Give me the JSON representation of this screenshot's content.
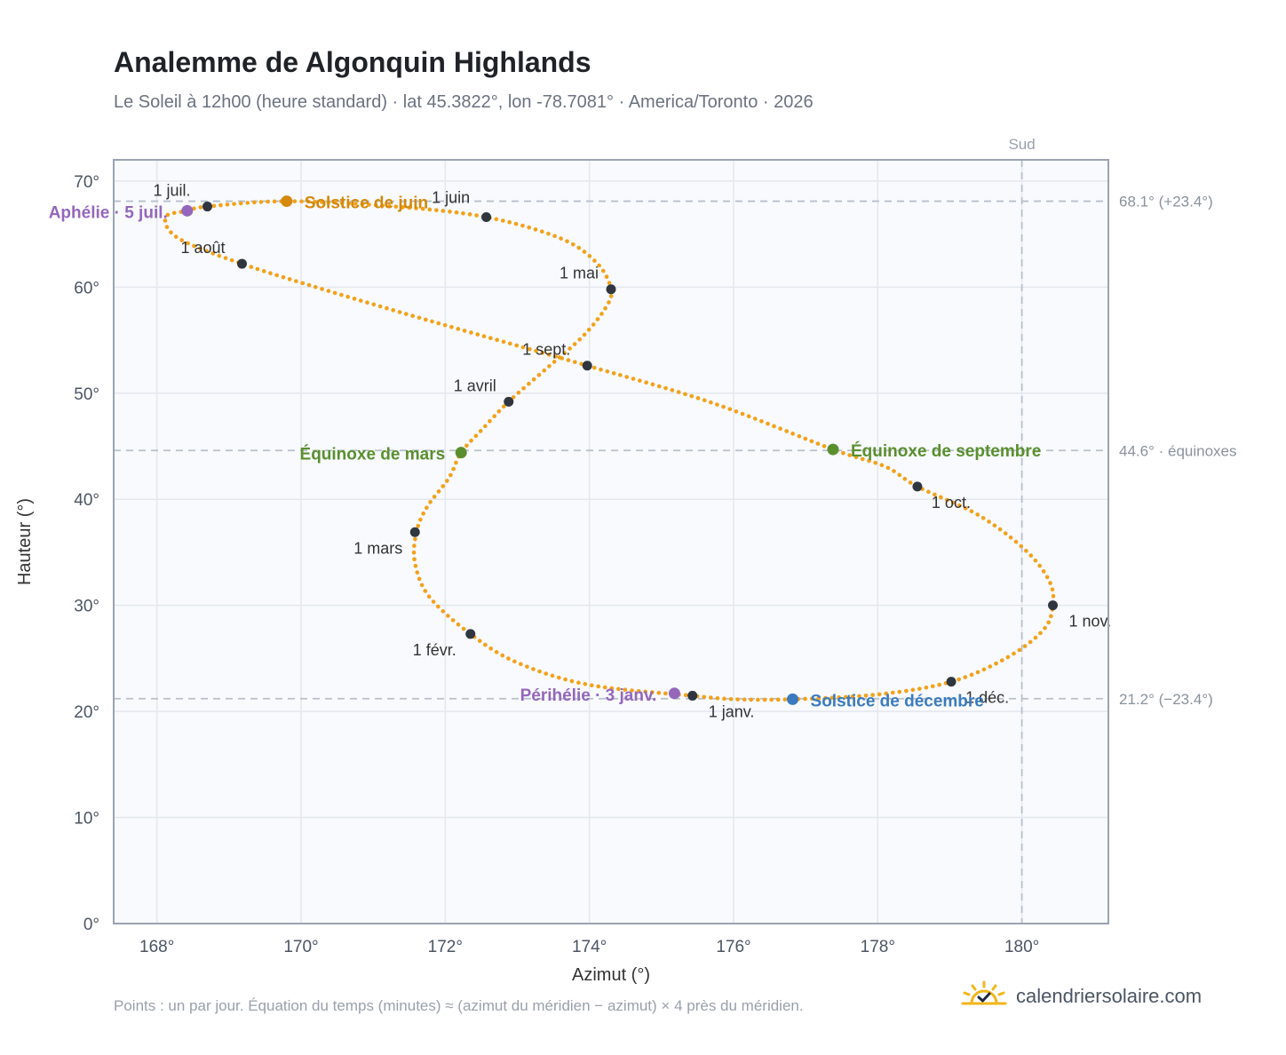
{
  "header": {
    "title": "Analemme de Algonquin Highlands",
    "subtitle": "Le Soleil à 12h00 (heure standard) · lat 45.3822°, lon -78.7081° · America/Toronto · 2026"
  },
  "footer": {
    "note": "Points : un par jour. Équation du temps (minutes) ≈ (azimut du méridien − azimut) × 4 près du méridien.",
    "brand": "calendriersolaire.com",
    "brand_icon": "sun-check-icon"
  },
  "colors": {
    "curve": "#f2a21b",
    "month_marker": "#2f3640",
    "equinox": "#5a8f2e",
    "june_solstice": "#d4890b",
    "december_solstice": "#3b7bbf",
    "apsis": "#9467bd",
    "reference_line": "#b7c0cc",
    "plot_background": "#f8fafd",
    "grid": "#e3e8ee"
  },
  "chart_data": {
    "type": "scatter",
    "title": "Analemme de Algonquin Highlands",
    "xlabel": "Azimut (°)",
    "ylabel": "Hauteur (°)",
    "xlim": [
      167.4,
      181.2
    ],
    "ylim": [
      0,
      72
    ],
    "x_ticks": [
      168,
      170,
      172,
      174,
      176,
      178,
      180
    ],
    "x_tick_labels": [
      "168°",
      "170°",
      "172°",
      "174°",
      "176°",
      "178°",
      "180°"
    ],
    "y_ticks": [
      0,
      10,
      20,
      30,
      40,
      50,
      60,
      70
    ],
    "y_tick_labels": [
      "0°",
      "10°",
      "20°",
      "30°",
      "40°",
      "50°",
      "60°",
      "70°"
    ],
    "grid": true,
    "south_line": {
      "x": 180,
      "label": "Sud"
    },
    "reference_lines": [
      {
        "y": 68.1,
        "label": "68.1° (+23.4°)"
      },
      {
        "y": 44.6,
        "label": "44.6° · équinoxes"
      },
      {
        "y": 21.2,
        "label": "21.2° (−23.4°)"
      }
    ],
    "curve_anchors": [
      [
        175.43,
        21.48
      ],
      [
        174.0,
        22.5
      ],
      [
        173.0,
        24.6
      ],
      [
        172.35,
        27.3
      ],
      [
        171.78,
        30.8
      ],
      [
        171.58,
        34.0
      ],
      [
        171.6,
        36.9
      ],
      [
        171.75,
        39.3
      ],
      [
        172.05,
        42.0
      ],
      [
        172.22,
        44.4
      ],
      [
        172.5,
        46.5
      ],
      [
        172.88,
        49.2
      ],
      [
        173.4,
        52.3
      ],
      [
        173.9,
        55.3
      ],
      [
        174.22,
        58.0
      ],
      [
        174.3,
        59.8
      ],
      [
        174.1,
        62.3
      ],
      [
        173.6,
        64.6
      ],
      [
        172.57,
        66.6
      ],
      [
        171.3,
        67.6
      ],
      [
        169.8,
        68.1
      ],
      [
        168.7,
        67.6
      ],
      [
        168.42,
        67.2
      ],
      [
        168.12,
        66.6
      ],
      [
        168.3,
        64.6
      ],
      [
        169.18,
        62.2
      ],
      [
        170.4,
        59.6
      ],
      [
        171.8,
        56.8
      ],
      [
        173.2,
        54.1
      ],
      [
        173.97,
        52.6
      ],
      [
        175.7,
        49.1
      ],
      [
        177.38,
        44.7
      ],
      [
        178.1,
        43.1
      ],
      [
        178.55,
        41.2
      ],
      [
        179.4,
        38.5
      ],
      [
        180.05,
        35.2
      ],
      [
        180.38,
        32.3
      ],
      [
        180.43,
        30.0
      ],
      [
        180.3,
        27.7
      ],
      [
        179.8,
        25.1
      ],
      [
        179.02,
        22.8
      ],
      [
        178.0,
        21.6
      ],
      [
        176.82,
        21.15
      ],
      [
        176.0,
        21.15
      ],
      [
        175.43,
        21.48
      ]
    ],
    "month_markers": [
      {
        "label": "1 janv.",
        "x": 175.43,
        "y": 21.48
      },
      {
        "label": "1 févr.",
        "x": 172.35,
        "y": 27.3
      },
      {
        "label": "1 mars",
        "x": 171.58,
        "y": 36.9
      },
      {
        "label": "1 avril",
        "x": 172.88,
        "y": 49.2
      },
      {
        "label": "1 mai",
        "x": 174.3,
        "y": 59.8
      },
      {
        "label": "1 juin",
        "x": 172.57,
        "y": 66.6
      },
      {
        "label": "1 juil.",
        "x": 168.7,
        "y": 67.6
      },
      {
        "label": "1 août",
        "x": 169.18,
        "y": 62.2
      },
      {
        "label": "1 sept.",
        "x": 173.97,
        "y": 52.6
      },
      {
        "label": "1 oct.",
        "x": 178.55,
        "y": 41.2
      },
      {
        "label": "1 nov.",
        "x": 180.43,
        "y": 30.0
      },
      {
        "label": "1 déc.",
        "x": 179.02,
        "y": 22.8
      }
    ],
    "events": [
      {
        "label": "Aphélie · 5 juil.",
        "x": 168.42,
        "y": 67.2,
        "kind": "apsis"
      },
      {
        "label": "Solstice de juin",
        "x": 169.8,
        "y": 68.1,
        "kind": "june_solstice"
      },
      {
        "label": "Équinoxe de mars",
        "x": 172.22,
        "y": 44.4,
        "kind": "equinox"
      },
      {
        "label": "Équinoxe de septembre",
        "x": 177.38,
        "y": 44.7,
        "kind": "equinox"
      },
      {
        "label": "Périhélie · 3 janv.",
        "x": 175.18,
        "y": 21.7,
        "kind": "apsis"
      },
      {
        "label": "Solstice de décembre",
        "x": 176.82,
        "y": 21.15,
        "kind": "december_solstice"
      }
    ]
  }
}
